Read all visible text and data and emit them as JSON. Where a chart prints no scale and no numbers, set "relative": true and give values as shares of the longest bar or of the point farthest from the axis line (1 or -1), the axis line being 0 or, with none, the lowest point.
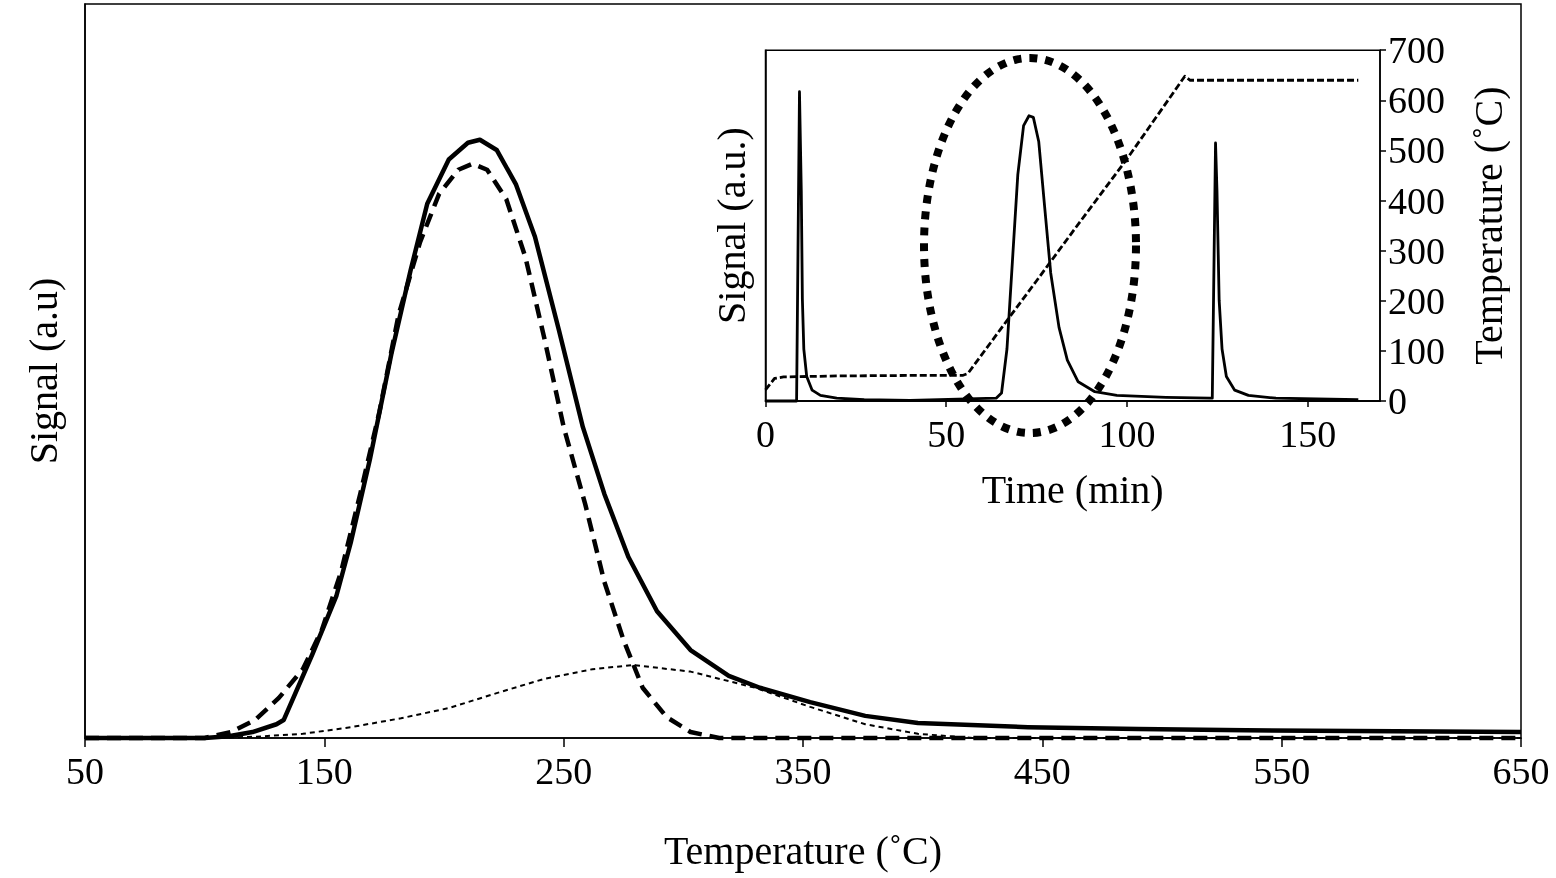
{
  "chart_data": [
    {
      "type": "line",
      "xlabel": "Temperature (˚C)",
      "ylabel": "Signal (a.u)",
      "relative": true,
      "xlim": [
        50,
        650
      ],
      "xticks": [
        50,
        150,
        250,
        350,
        450,
        550,
        650
      ],
      "marker": "none",
      "series": [
        {
          "color": "#000000",
          "line_style": "solid",
          "x": [
            50,
            100,
            110,
            120,
            130,
            133,
            145,
            155,
            161,
            169,
            178,
            186,
            193,
            202,
            210,
            215,
            222,
            230,
            238,
            248,
            258,
            267,
            277,
            289,
            303,
            319,
            332,
            353,
            376,
            398,
            444,
            490,
            535,
            650
          ],
          "values": [
            0,
            0,
            0.003,
            0.01,
            0.023,
            0.03,
            0.14,
            0.237,
            0.326,
            0.465,
            0.642,
            0.781,
            0.893,
            0.967,
            0.995,
            1,
            0.983,
            0.926,
            0.838,
            0.682,
            0.52,
            0.408,
            0.303,
            0.212,
            0.147,
            0.104,
            0.084,
            0.06,
            0.037,
            0.025,
            0.018,
            0.015,
            0.013,
            0.01
          ]
        },
        {
          "color": "#000000",
          "line_style": "dashed",
          "x": [
            50,
            100,
            111,
            121,
            131,
            141,
            149,
            157,
            165,
            173,
            181,
            190,
            198,
            206,
            212,
            218,
            226,
            234,
            242,
            250,
            259,
            267,
            275,
            283,
            293,
            303,
            315,
            650
          ],
          "values": [
            0,
            0,
            0.01,
            0.03,
            0.067,
            0.115,
            0.181,
            0.278,
            0.408,
            0.545,
            0.707,
            0.829,
            0.91,
            0.95,
            0.96,
            0.95,
            0.901,
            0.804,
            0.667,
            0.52,
            0.391,
            0.261,
            0.164,
            0.084,
            0.035,
            0.01,
            0,
            0
          ]
        },
        {
          "color": "#000000",
          "line_style": "dotted",
          "x": [
            50,
            100,
            121,
            141,
            161,
            182,
            202,
            222,
            242,
            262,
            279,
            303,
            330,
            353,
            376,
            398,
            421,
            650
          ],
          "values": [
            0,
            0,
            0.002,
            0.007,
            0.018,
            0.033,
            0.05,
            0.075,
            0.099,
            0.115,
            0.122,
            0.111,
            0.084,
            0.052,
            0.023,
            0.007,
            0,
            0
          ]
        }
      ]
    },
    {
      "type": "line",
      "xlabel": "Time (min)",
      "ylabel": "Signal (a.u.)",
      "relative": true,
      "xlim": [
        0,
        170
      ],
      "xticks": [
        0,
        50,
        100,
        150
      ],
      "marker": "none",
      "series": [
        {
          "color": "#000000",
          "line_style": "solid",
          "x": [
            0,
            8.6,
            9.4,
            9.9,
            10.2,
            10.6,
            11.4,
            12.9,
            15.2,
            19.7,
            27.3,
            40,
            63.8,
            65.3,
            66.8,
            68.3,
            69.8,
            71.4,
            72.9,
            74.1,
            75.6,
            77.1,
            78.9,
            81.2,
            83.5,
            86.5,
            91.1,
            97.2,
            110.8,
            123,
            123.6,
            124.5,
            124.9,
            125.5,
            126.3,
            127.5,
            129.8,
            133.6,
            141.2,
            164
          ],
          "values": [
            0,
            0,
            1,
            0.68,
            0.33,
            0.168,
            0.079,
            0.035,
            0.018,
            0.009,
            0.004,
            0.002,
            0.009,
            0.026,
            0.168,
            0.45,
            0.732,
            0.89,
            0.922,
            0.917,
            0.838,
            0.644,
            0.414,
            0.238,
            0.132,
            0.062,
            0.03,
            0.018,
            0.012,
            0.009,
            0.009,
            0.834,
            0.68,
            0.326,
            0.168,
            0.079,
            0.035,
            0.018,
            0.009,
            0.004
          ]
        }
      ]
    },
    {
      "type": "line",
      "ylabel": "Temperature (˚C)",
      "xlim": [
        0,
        170
      ],
      "ylim": [
        0,
        700
      ],
      "yticks": [
        0,
        100,
        200,
        300,
        400,
        500,
        600,
        700
      ],
      "tick_labels": "y",
      "marker": "none",
      "series": [
        {
          "color": "#000000",
          "line_style": "dashed",
          "x": [
            0,
            2.5,
            5,
            20,
            40,
            54.5,
            56,
            65,
            75,
            85,
            100,
            116,
            117.5,
            164
          ],
          "values": [
            22,
            45,
            48,
            50,
            51,
            51,
            55,
            143,
            240,
            338,
            483,
            648,
            640,
            640
          ]
        }
      ]
    }
  ]
}
